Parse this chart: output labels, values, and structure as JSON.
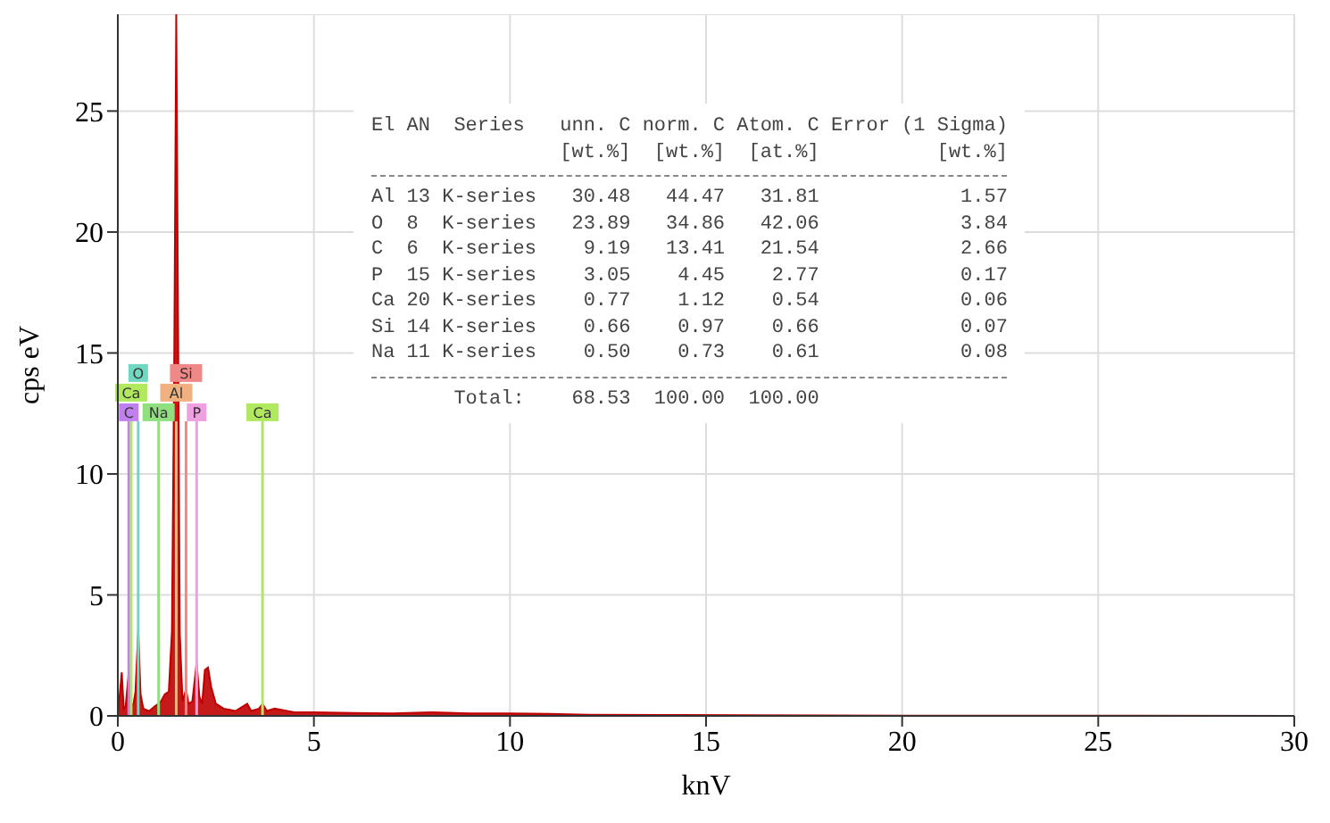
{
  "chart_data": {
    "type": "area",
    "xlabel": "knV",
    "ylabel": "cps eV",
    "x": [
      0,
      0.1,
      0.15,
      0.2,
      0.28,
      0.32,
      0.4,
      0.45,
      0.52,
      0.58,
      0.65,
      0.8,
      0.95,
      1.04,
      1.1,
      1.2,
      1.3,
      1.38,
      1.44,
      1.49,
      1.54,
      1.58,
      1.65,
      1.74,
      1.8,
      1.9,
      2.01,
      2.08,
      2.15,
      2.22,
      2.3,
      2.38,
      2.5,
      2.7,
      3.0,
      3.3,
      3.4,
      3.6,
      3.69,
      3.8,
      4.0,
      4.5,
      5,
      6,
      7,
      8,
      9,
      10,
      11,
      12,
      14,
      16,
      18,
      20,
      25,
      30
    ],
    "series": [
      {
        "color": "#c00000",
        "values": [
          0,
          1.8,
          0.3,
          0.4,
          1.8,
          0.4,
          0.5,
          1.0,
          3.5,
          0.9,
          0.3,
          0.2,
          0.4,
          0.5,
          0.6,
          0.9,
          1.0,
          3.5,
          15,
          29,
          15,
          3.4,
          0.6,
          1.1,
          0.5,
          0.6,
          2.2,
          0.8,
          0.5,
          1.9,
          2.0,
          1.2,
          0.5,
          0.3,
          0.2,
          0.5,
          0.2,
          0.3,
          0.5,
          0.2,
          0.3,
          0.15,
          0.15,
          0.12,
          0.1,
          0.15,
          0.1,
          0.1,
          0.08,
          0.05,
          0.04,
          0.03,
          0.02,
          0.01,
          0.01,
          0
        ]
      }
    ],
    "xlim": [
      0,
      30
    ],
    "xticks": [
      0,
      5,
      10,
      15,
      20,
      25,
      30
    ],
    "ylim": [
      0,
      29
    ],
    "yticks": [
      0,
      5,
      10,
      15,
      20,
      25
    ],
    "grid": true,
    "ref_lines": [
      {
        "axis": "x",
        "value": 0.28,
        "label": "C",
        "color": "#c080f0"
      },
      {
        "axis": "x",
        "value": 0.34,
        "label": "Ca",
        "color": "#b0e860"
      },
      {
        "axis": "x",
        "value": 0.52,
        "label": "O",
        "color": "#70d8c0"
      },
      {
        "axis": "x",
        "value": 1.04,
        "label": "Na",
        "color": "#90e080"
      },
      {
        "axis": "x",
        "value": 1.49,
        "label": "Al",
        "color": "#f0b080"
      },
      {
        "axis": "x",
        "value": 1.74,
        "label": "Si",
        "color": "#f08888"
      },
      {
        "axis": "x",
        "value": 2.01,
        "label": "P",
        "color": "#f0a0e0"
      },
      {
        "axis": "x",
        "value": 3.69,
        "label": "Ca",
        "color": "#b0e860"
      }
    ],
    "annotations": [
      "El AN  Series   unn. C norm. C Atom. C Error (1 Sigma)",
      "                [wt.%]  [wt.%]  [at.%]          [wt.%]",
      "Al 13 K-series   30.48   44.47   31.81            1.57",
      "O  8  K-series   23.89   34.86   42.06            3.84",
      "C  6  K-series    9.19   13.41   21.54            2.66",
      "P  15 K-series    3.05    4.45    2.77            0.17",
      "Ca 20 K-series    0.77    1.12    0.54            0.06",
      "Si 14 K-series    0.66    0.97    0.66            0.07",
      "Na 11 K-series    0.50    0.73    0.61            0.08",
      "       Total:    68.53  100.00  100.00"
    ]
  }
}
